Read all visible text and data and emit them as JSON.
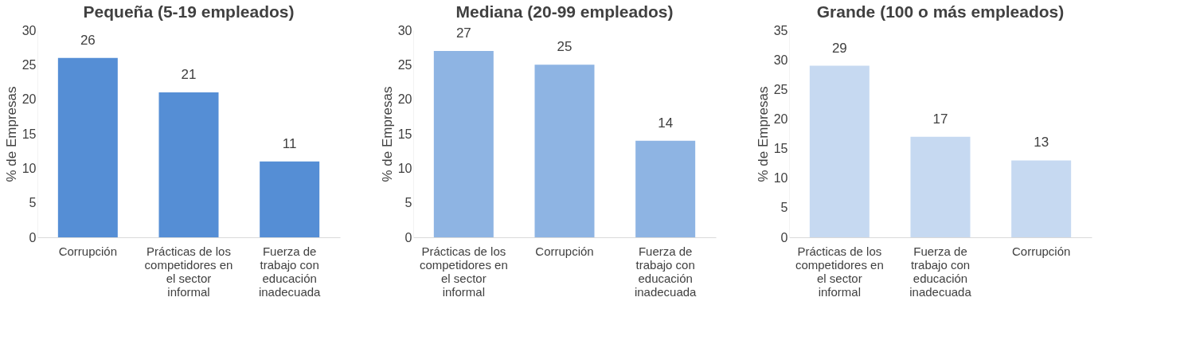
{
  "chart_data": [
    {
      "type": "bar",
      "title": "Pequeña (5-19 empleados)",
      "ylabel": "% de Empresas",
      "categories": [
        "Corrupción",
        "Prácticas de los competidores en el sector informal",
        "Fuerza de trabajo con educación inadecuada"
      ],
      "values": [
        26,
        21,
        11
      ],
      "color": "#558ed5",
      "ylim": [
        0,
        30
      ],
      "yticks": [
        0,
        5,
        10,
        15,
        20,
        25,
        30
      ],
      "data_labels": true,
      "grid": false
    },
    {
      "type": "bar",
      "title": "Mediana (20-99 empleados)",
      "ylabel": "% de Empresas",
      "categories": [
        "Prácticas de los competidores en el sector informal",
        "Corrupción",
        "Fuerza de trabajo con educación inadecuada"
      ],
      "values": [
        27,
        25,
        14
      ],
      "color": "#8eb4e3",
      "ylim": [
        0,
        30
      ],
      "yticks": [
        0,
        5,
        10,
        15,
        20,
        25,
        30
      ],
      "data_labels": true,
      "grid": false
    },
    {
      "type": "bar",
      "title": "Grande (100 o más empleados)",
      "ylabel": "% de Empresas",
      "categories": [
        "Prácticas de los competidores en el sector informal",
        "Fuerza de trabajo con educación inadecuada",
        "Corrupción"
      ],
      "values": [
        29,
        17,
        13
      ],
      "color": "#c6d9f1",
      "ylim": [
        0,
        35
      ],
      "yticks": [
        0,
        5,
        10,
        15,
        20,
        25,
        30,
        35
      ],
      "data_labels": true,
      "grid": false
    }
  ]
}
